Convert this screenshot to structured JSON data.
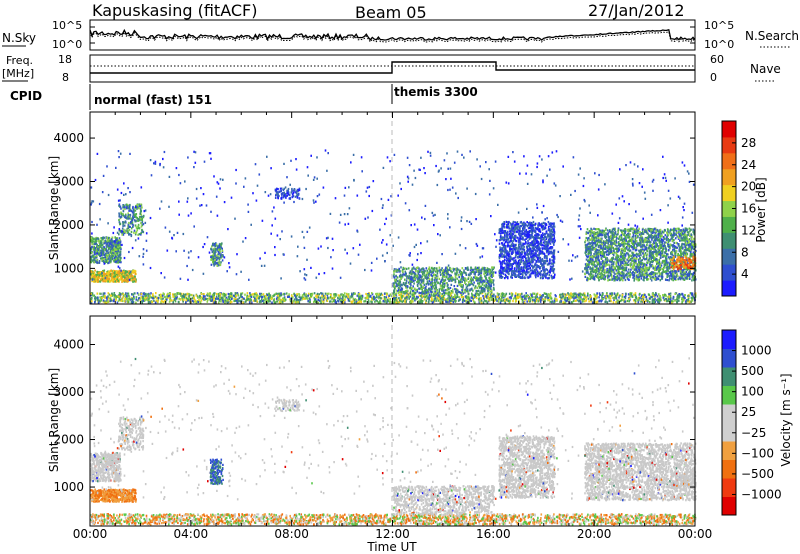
{
  "header": {
    "station": "Kapuskasing (fitACF)",
    "beam": "Beam 05",
    "date": "27/Jan/2012"
  },
  "top_panels": {
    "nsky_label": "N.Sky",
    "nsearch_label": "N.Search",
    "freq_label": "Freq.",
    "freq_unit": "[MHz]",
    "nave_label": "Nave",
    "cpid_label": "CPID",
    "nsky_ticks": [
      "10^5",
      "10^0"
    ],
    "nsearch_ticks": [
      "10^5",
      "10^0"
    ],
    "freq_ticks": [
      "18",
      "8"
    ],
    "nave_ticks": [
      "60",
      "0"
    ],
    "cpid_segments": [
      {
        "start_h": 0,
        "end_h": 12,
        "label": "normal (fast) 151"
      },
      {
        "start_h": 12,
        "end_h": 24,
        "label": "themis 3300"
      }
    ]
  },
  "colors": {
    "power_scale": [
      "#1c1cff",
      "#2f4fd0",
      "#3b6fa8",
      "#3f8f72",
      "#4fb04a",
      "#8fd24a",
      "#f0d020",
      "#f0a020",
      "#f06f18",
      "#e83a12",
      "#e00000"
    ],
    "velocity_scale": [
      "#e00000",
      "#f03a10",
      "#f07010",
      "#f0a040",
      "#cfcfcf",
      "#cfcfcf",
      "#59c84a",
      "#3f8f72",
      "#2f4fd0",
      "#1c1cff"
    ]
  },
  "chart_data": [
    {
      "type": "heatmap",
      "title": "Power",
      "xlabel": "Time UT",
      "ylabel": "Slant Range [km]",
      "x_ticks": [
        "00:00",
        "04:00",
        "08:00",
        "12:00",
        "16:00",
        "20:00",
        "00:00"
      ],
      "y_ticks": [
        "1000",
        "2000",
        "3000",
        "4000"
      ],
      "xlim_hours": [
        0,
        24
      ],
      "ylim_km": [
        180,
        4600
      ],
      "colorbar_label": "Power [dB]",
      "colorbar_ticks": [
        "4",
        "8",
        "12",
        "16",
        "20",
        "24",
        "28"
      ],
      "colorbar_range": [
        0,
        30
      ]
    },
    {
      "type": "heatmap",
      "title": "Velocity",
      "xlabel": "Time UT",
      "ylabel": "Slant Range [km]",
      "x_ticks": [
        "00:00",
        "04:00",
        "08:00",
        "12:00",
        "16:00",
        "20:00",
        "00:00"
      ],
      "y_ticks": [
        "1000",
        "2000",
        "3000",
        "4000"
      ],
      "xlim_hours": [
        0,
        24
      ],
      "ylim_km": [
        180,
        4600
      ],
      "colorbar_label": "Velocity [m s⁻¹]",
      "colorbar_ticks": [
        "1000",
        "500",
        "100",
        "25",
        "−25",
        "−100",
        "−500",
        "−1000"
      ],
      "colorbar_range": [
        -1000,
        1000
      ]
    }
  ]
}
